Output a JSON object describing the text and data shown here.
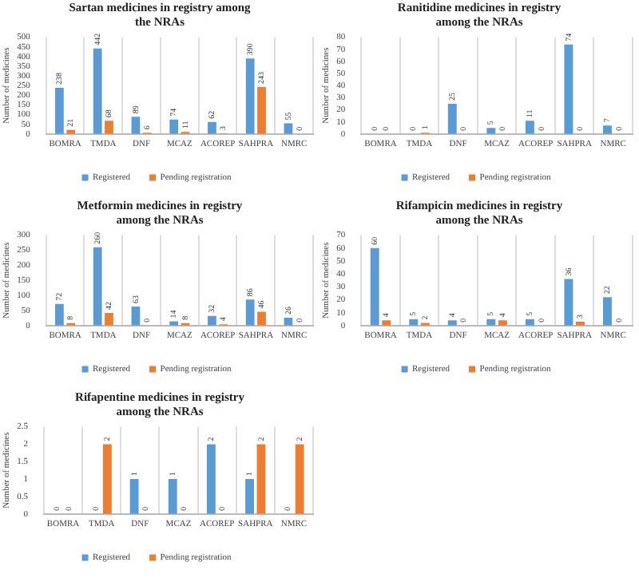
{
  "chart_data": [
    {
      "type": "bar",
      "title": "Sartan medicines in registry among the NRAs",
      "ylabel": "Number of medicines",
      "categories": [
        "BOMRA",
        "TMDA",
        "DNF",
        "MCAZ",
        "ACOREP",
        "SAHPRA",
        "NMRC"
      ],
      "series": [
        {
          "name": "Registered",
          "color": "#5b9bd5",
          "values": [
            238,
            442,
            89,
            74,
            62,
            390,
            55
          ]
        },
        {
          "name": "Pending registration",
          "color": "#ed7d31",
          "values": [
            21,
            68,
            6,
            11,
            3,
            243,
            0
          ]
        }
      ],
      "ylim": [
        0,
        500
      ],
      "yticks": [
        0,
        50,
        100,
        150,
        200,
        250,
        300,
        350,
        400,
        450,
        500
      ],
      "grid": "x",
      "legend": "bottom",
      "data_labels": true
    },
    {
      "type": "bar",
      "title": "Ranitidine medicines in registry among the NRAs",
      "ylabel": "Number of medicines",
      "categories": [
        "BOMRA",
        "TMDA",
        "DNF",
        "MCAZ",
        "ACOREP",
        "SAHPRA",
        "NMRC"
      ],
      "series": [
        {
          "name": "Registered",
          "color": "#5b9bd5",
          "values": [
            0,
            0,
            25,
            5,
            11,
            74,
            7
          ]
        },
        {
          "name": "Pending registration",
          "color": "#ed7d31",
          "values": [
            0,
            1,
            0,
            0,
            0,
            0,
            0
          ]
        }
      ],
      "ylim": [
        0,
        80
      ],
      "yticks": [
        0,
        10,
        20,
        30,
        40,
        50,
        60,
        70,
        80
      ],
      "grid": "x",
      "legend": "bottom",
      "data_labels": true
    },
    {
      "type": "bar",
      "title": "Metformin medicines in registry among the NRAs",
      "ylabel": "Number of medicines",
      "categories": [
        "BOMRA",
        "TMDA",
        "DNF",
        "MCAZ",
        "ACOREP",
        "SAHPRA",
        "NMRC"
      ],
      "series": [
        {
          "name": "Registered",
          "color": "#5b9bd5",
          "values": [
            72,
            260,
            63,
            14,
            32,
            86,
            26
          ]
        },
        {
          "name": "Pending registration",
          "color": "#ed7d31",
          "values": [
            8,
            42,
            0,
            8,
            4,
            46,
            0
          ]
        }
      ],
      "ylim": [
        0,
        300
      ],
      "yticks": [
        0,
        50,
        100,
        150,
        200,
        250,
        300
      ],
      "grid": "x",
      "legend": "bottom",
      "data_labels": true
    },
    {
      "type": "bar",
      "title": "Rifampicin medicines in registry among the NRAs",
      "ylabel": "Number of medicines",
      "categories": [
        "BOMRA",
        "TMDA",
        "DNF",
        "MCAZ",
        "ACOREP",
        "SAHPRA",
        "NMRC"
      ],
      "series": [
        {
          "name": "Registered",
          "color": "#5b9bd5",
          "values": [
            60,
            5,
            4,
            5,
            5,
            36,
            22
          ]
        },
        {
          "name": "Pending registration",
          "color": "#ed7d31",
          "values": [
            4,
            2,
            0,
            4,
            0,
            3,
            0
          ]
        }
      ],
      "ylim": [
        0,
        70
      ],
      "yticks": [
        0,
        10,
        20,
        30,
        40,
        50,
        60,
        70
      ],
      "grid": "x",
      "legend": "bottom",
      "data_labels": true
    },
    {
      "type": "bar",
      "title": "Rifapentine medicines in registry among the NRAs",
      "ylabel": "Number of medicines",
      "categories": [
        "BOMRA",
        "TMDA",
        "DNF",
        "MCAZ",
        "ACOREP",
        "SAHPRA",
        "NMRC"
      ],
      "series": [
        {
          "name": "Registered",
          "color": "#5b9bd5",
          "values": [
            0,
            0,
            1,
            1,
            2,
            1,
            0
          ]
        },
        {
          "name": "Pending registration",
          "color": "#ed7d31",
          "values": [
            0,
            2,
            0,
            0,
            0,
            2,
            2
          ]
        }
      ],
      "ylim": [
        0,
        2.5
      ],
      "yticks": [
        0,
        0.5,
        1,
        1.5,
        2,
        2.5
      ],
      "grid": "x",
      "legend": "bottom",
      "data_labels": true
    }
  ]
}
